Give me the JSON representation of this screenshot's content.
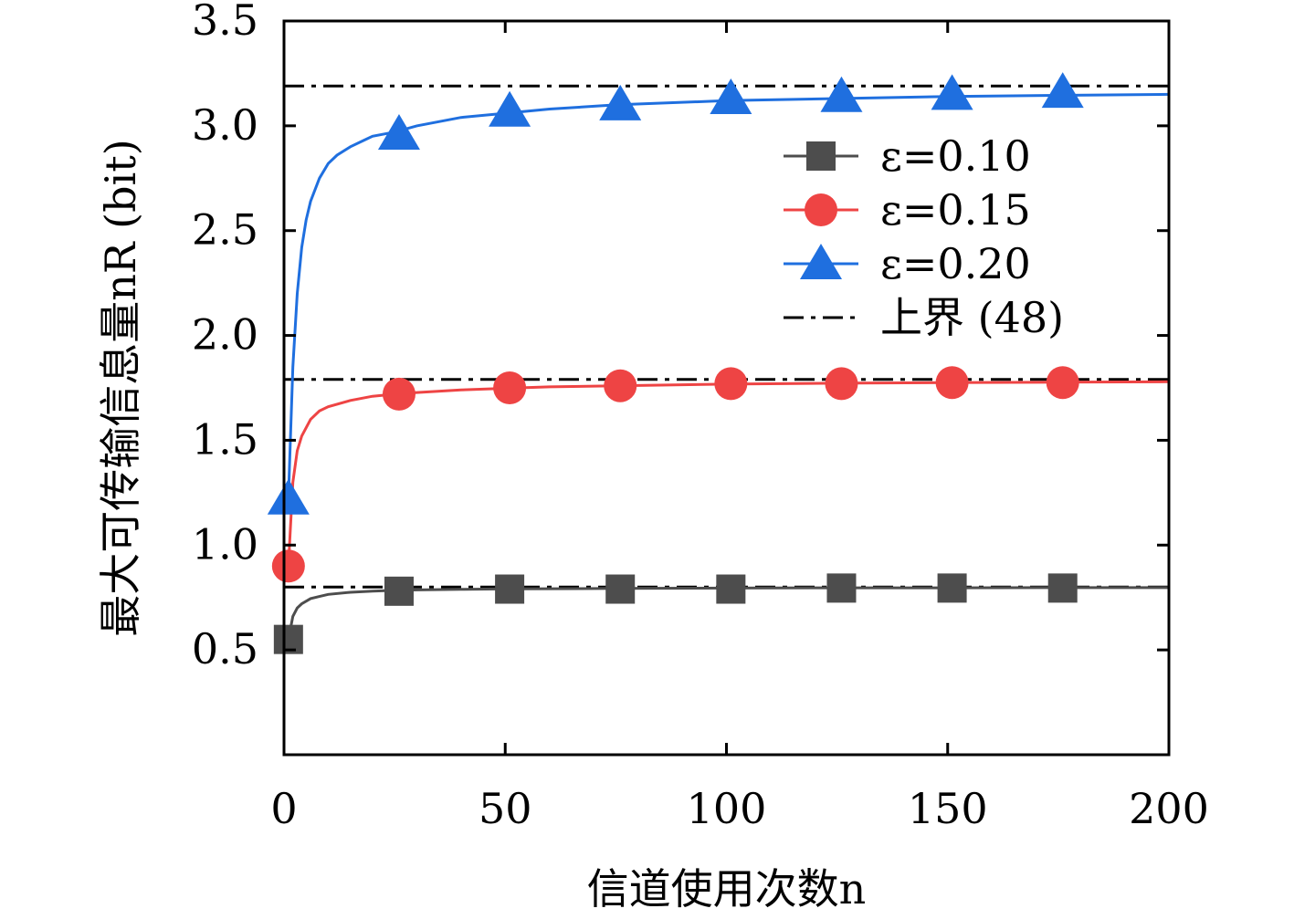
{
  "chart_data": {
    "type": "line",
    "xlabel": "信道使用次数n",
    "ylabel": "最大可传输信息量nR (bit)",
    "xlim": [
      0,
      200
    ],
    "ylim": [
      0,
      3.5
    ],
    "x_ticks": [
      "0",
      "50",
      "100",
      "150",
      "200"
    ],
    "y_ticks": [
      "0.5",
      "1.0",
      "1.5",
      "2.0",
      "2.5",
      "3.0",
      "3.5"
    ],
    "legend_position": "upper-right",
    "grid": false,
    "series": [
      {
        "name": "ε=0.10",
        "color": "#4d4d4d",
        "marker": "square",
        "curve_x": [
          1,
          2,
          3,
          4,
          6,
          8,
          10,
          15,
          20,
          25,
          30,
          40,
          50,
          60,
          75,
          100,
          125,
          150,
          175,
          200
        ],
        "curve_y": [
          0.55,
          0.66,
          0.7,
          0.72,
          0.745,
          0.755,
          0.765,
          0.775,
          0.78,
          0.784,
          0.786,
          0.789,
          0.791,
          0.792,
          0.793,
          0.795,
          0.796,
          0.796,
          0.797,
          0.797
        ],
        "marker_x": [
          1,
          26,
          51,
          76,
          101,
          126,
          151,
          176
        ],
        "marker_y": [
          0.55,
          0.78,
          0.79,
          0.79,
          0.79,
          0.795,
          0.795,
          0.795
        ]
      },
      {
        "name": "ε=0.15",
        "color": "#ee4444",
        "marker": "circle",
        "curve_x": [
          1,
          2,
          3,
          4,
          6,
          8,
          10,
          15,
          20,
          25,
          30,
          40,
          50,
          60,
          75,
          100,
          125,
          150,
          175,
          200
        ],
        "curve_y": [
          0.9,
          1.3,
          1.45,
          1.52,
          1.6,
          1.64,
          1.66,
          1.69,
          1.71,
          1.72,
          1.728,
          1.74,
          1.748,
          1.755,
          1.76,
          1.768,
          1.772,
          1.775,
          1.777,
          1.779
        ],
        "marker_x": [
          1,
          26,
          51,
          76,
          101,
          126,
          151,
          176
        ],
        "marker_y": [
          0.9,
          1.72,
          1.75,
          1.76,
          1.77,
          1.77,
          1.775,
          1.775
        ]
      },
      {
        "name": "ε=0.20",
        "color": "#1f6fdf",
        "marker": "triangle",
        "curve_x": [
          1,
          2,
          3,
          4,
          5,
          6,
          8,
          10,
          12,
          15,
          18,
          20,
          25,
          30,
          40,
          50,
          60,
          75,
          100,
          125,
          150,
          175,
          200
        ],
        "curve_y": [
          1.22,
          1.85,
          2.2,
          2.42,
          2.55,
          2.64,
          2.75,
          2.82,
          2.86,
          2.9,
          2.93,
          2.95,
          2.97,
          3.0,
          3.04,
          3.06,
          3.08,
          3.1,
          3.12,
          3.13,
          3.14,
          3.145,
          3.15
        ],
        "marker_x": [
          1,
          26,
          51,
          76,
          101,
          126,
          151,
          176
        ],
        "marker_y": [
          1.22,
          2.96,
          3.07,
          3.1,
          3.13,
          3.14,
          3.15,
          3.16
        ]
      }
    ],
    "upper_bounds": {
      "name": "上界 (48)",
      "color": "#000000",
      "style": "dash-dot",
      "values": [
        0.8,
        1.79,
        3.19
      ]
    }
  }
}
